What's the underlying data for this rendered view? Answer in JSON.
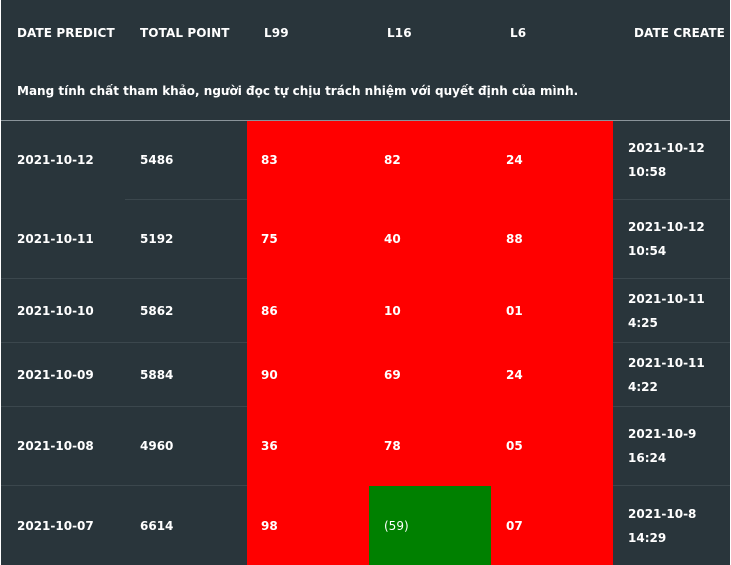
{
  "header": {
    "date_predict": "DATE PREDICT",
    "total_point": "TOTAL POINT",
    "l99": "L99",
    "l16": "L16",
    "l6": "L6",
    "date_create": "DATE CREATE"
  },
  "note": "Mang tính chất tham khảo, người đọc tự chịu trách nhiệm với quyết định của mình.",
  "colors": {
    "background": "#29353b",
    "miss": "#ff0000",
    "hit": "#008000"
  },
  "rows": [
    {
      "date": "2021-10-12",
      "total": "5486",
      "l99": "83",
      "l16": "82",
      "l6": "24",
      "create": "2021-10-12 10:58"
    },
    {
      "date": "2021-10-11",
      "total": "5192",
      "l99": "75",
      "l16": "40",
      "l6": "88",
      "create": "2021-10-12 10:54"
    },
    {
      "date": "2021-10-10",
      "total": "5862",
      "l99": "86",
      "l16": "10",
      "l6": "01",
      "create": "2021-10-11 4:25"
    },
    {
      "date": "2021-10-09",
      "total": "5884",
      "l99": "90",
      "l16": "69",
      "l6": "24",
      "create": "2021-10-11 4:22"
    },
    {
      "date": "2021-10-08",
      "total": "4960",
      "l99": "36",
      "l16": "78",
      "l6": "05",
      "create": "2021-10-9 16:24"
    },
    {
      "date": "2021-10-07",
      "total": "6614",
      "l99": "98",
      "l16": "(59)",
      "l6": "07",
      "create": "2021-10-8 14:29"
    }
  ]
}
